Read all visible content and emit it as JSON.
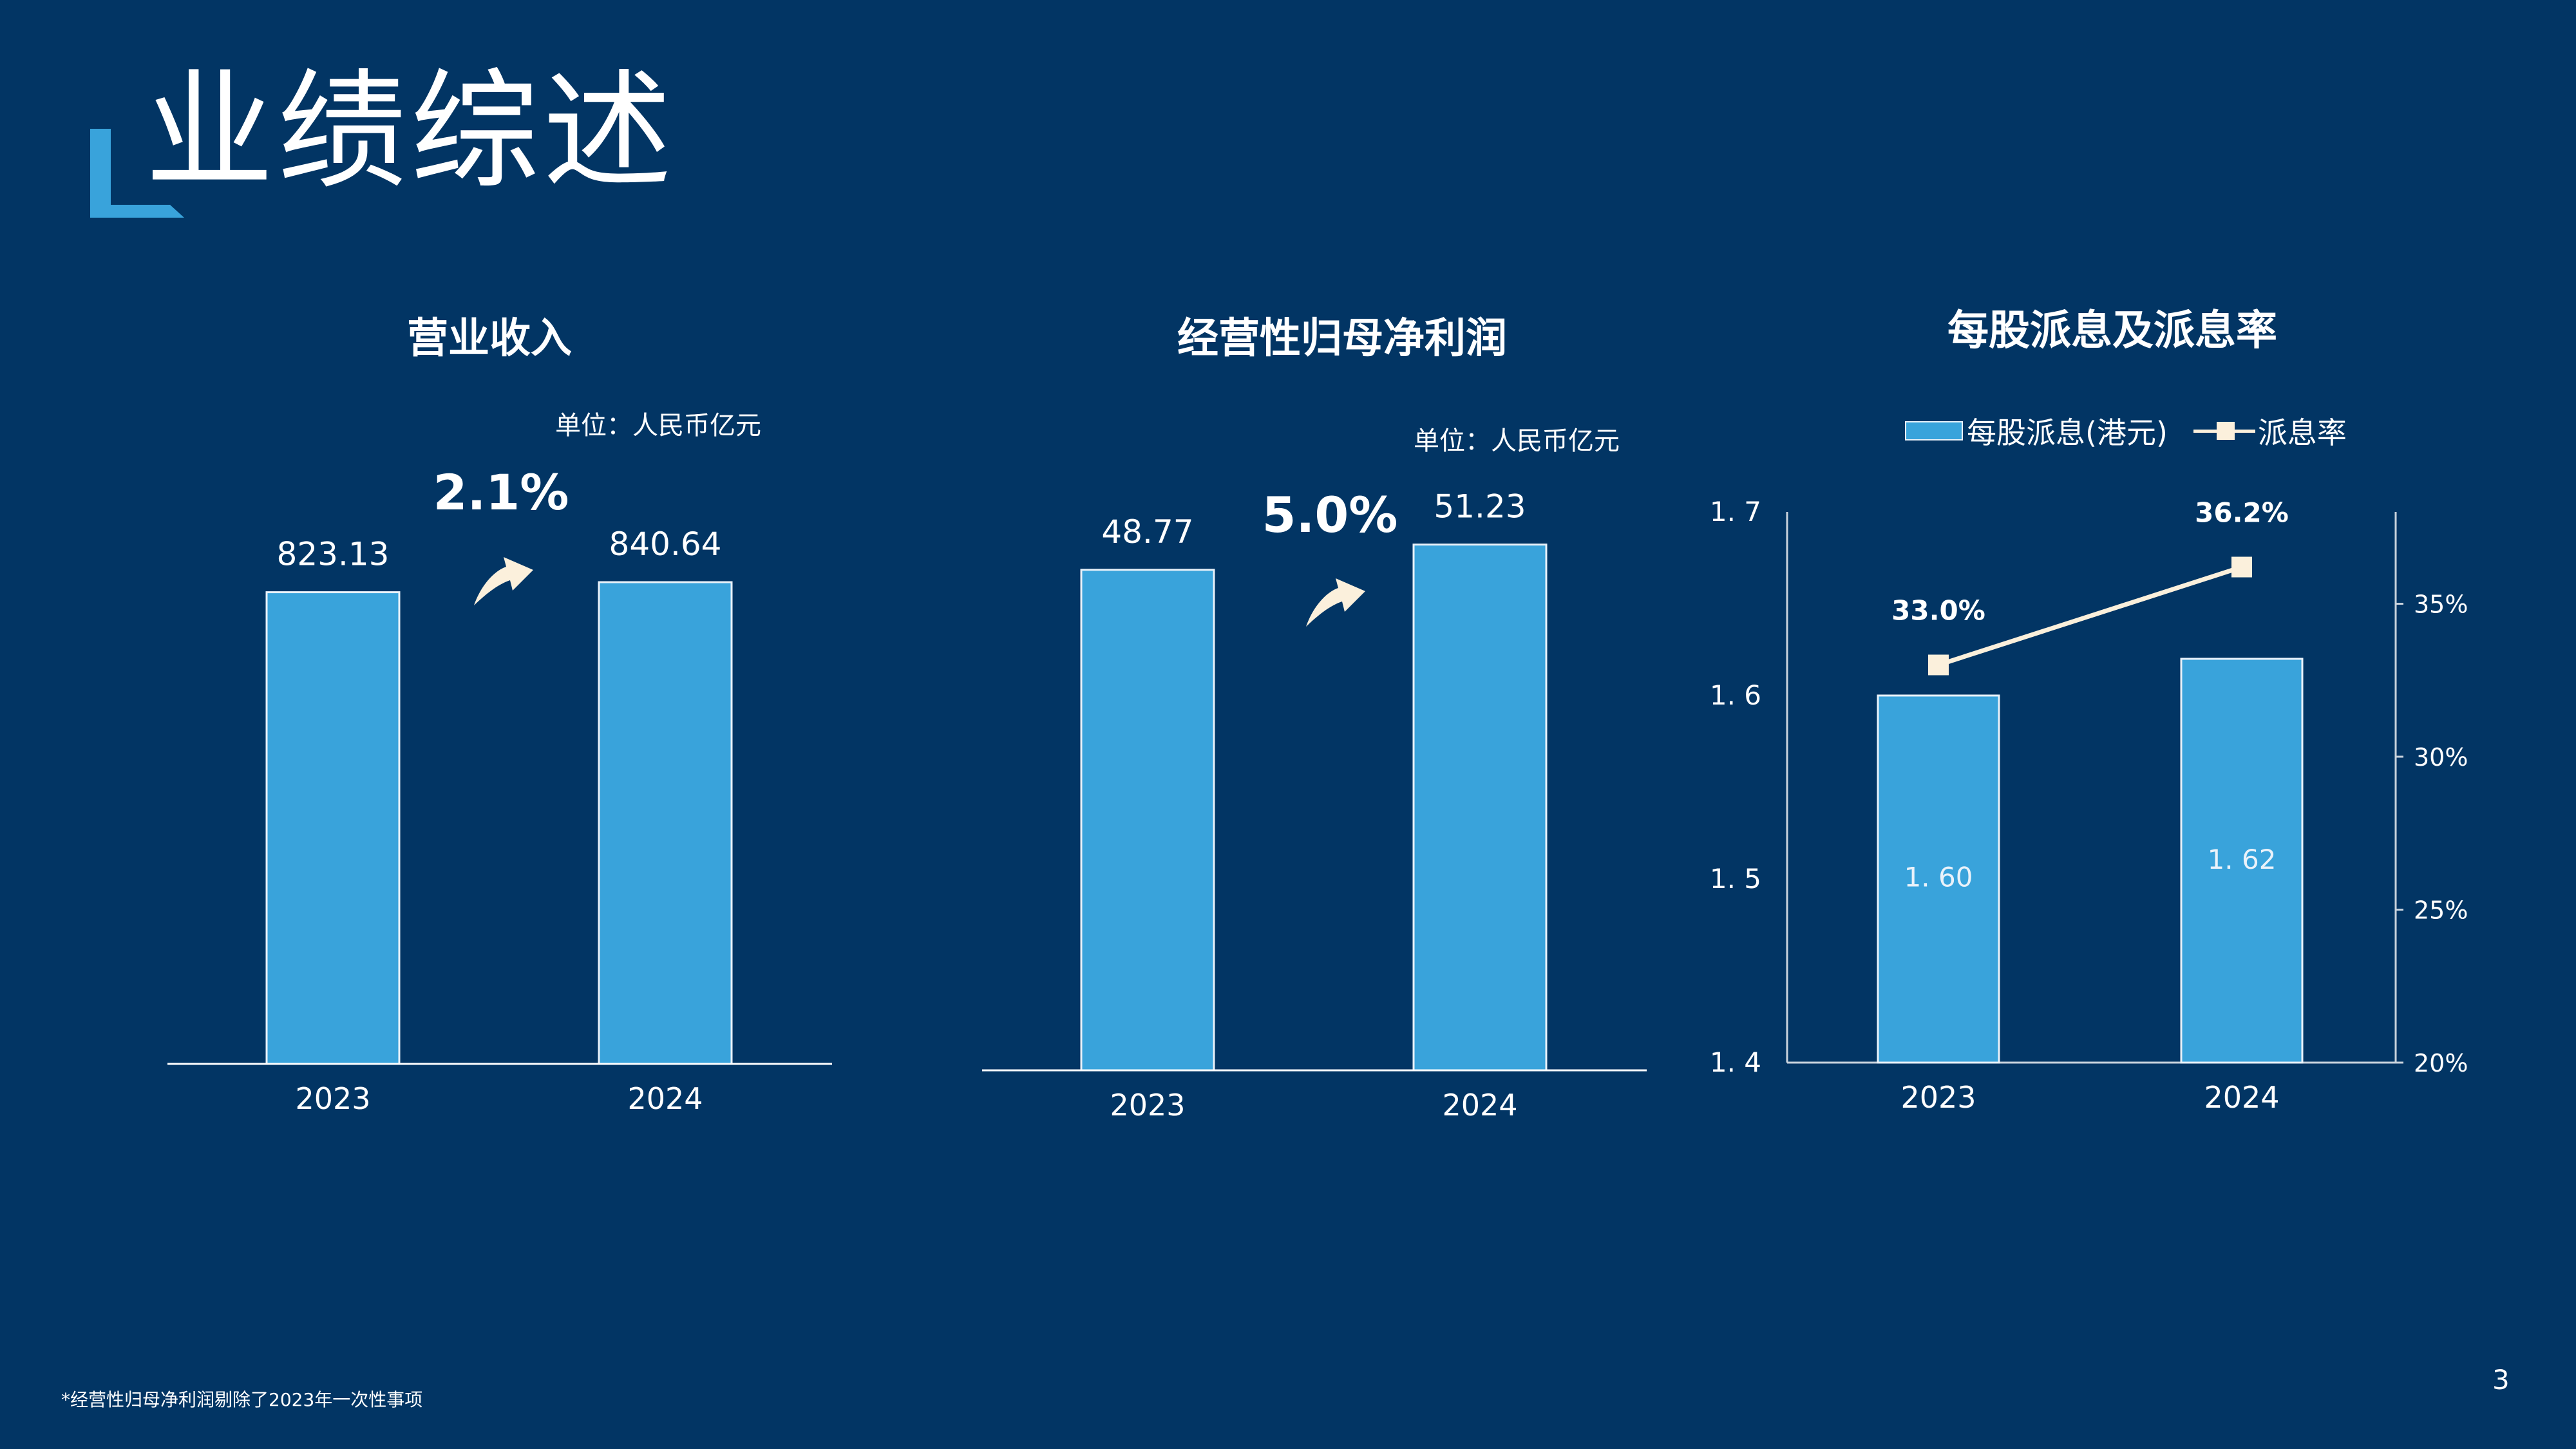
{
  "slide": {
    "title": "业绩综述",
    "page_number": "3",
    "footnote": "*经营性归母净利润剔除了2023年一次性事项"
  },
  "colors": {
    "background": "#023564",
    "bar": "#39a3db",
    "bar_outline": "#eaf2fa",
    "line": "#fbf0dc",
    "accent": "#39a3db"
  },
  "icons": {
    "corner_mark": "corner-bracket-icon",
    "growth_arrow": "curved-up-arrow-icon"
  },
  "chart_data": [
    {
      "type": "bar",
      "title": "营业收入",
      "unit": "单位：人民币亿元",
      "categories": [
        "2023",
        "2024"
      ],
      "values": [
        823.13,
        840.64
      ],
      "value_labels": [
        "823.13",
        "840.64"
      ],
      "growth": "2.1%",
      "ylim": [
        0,
        980
      ],
      "axes_visible": false
    },
    {
      "type": "bar",
      "title": "经营性归母净利润",
      "unit": "单位：人民币亿元",
      "categories": [
        "2023",
        "2024"
      ],
      "values": [
        48.77,
        51.23
      ],
      "value_labels": [
        "48.77",
        "51.23"
      ],
      "growth": "5.0%",
      "ylim": [
        0,
        56.6
      ],
      "axes_visible": false
    },
    {
      "type": "bar+line",
      "title": "每股派息及派息率",
      "categories": [
        "2023",
        "2024"
      ],
      "series": [
        {
          "name": "每股派息(港元)",
          "type": "bar",
          "axis": "left",
          "values": [
            1.6,
            1.62
          ],
          "value_labels": [
            "1. 60",
            "1. 62"
          ]
        },
        {
          "name": "派息率",
          "type": "line",
          "axis": "right",
          "values": [
            33.0,
            36.2
          ],
          "value_labels": [
            "33.0%",
            "36.2%"
          ]
        }
      ],
      "y_left": {
        "ylim": [
          1.4,
          1.7
        ],
        "ticks": [
          "1. 4",
          "1. 5",
          "1. 6",
          "1. 7"
        ],
        "tick_values": [
          1.4,
          1.5,
          1.6,
          1.7
        ]
      },
      "y_right": {
        "ylim": [
          20,
          38
        ],
        "ticks": [
          "20%",
          "25%",
          "30%",
          "35%"
        ],
        "tick_values": [
          20,
          25,
          30,
          35
        ]
      },
      "legend": "top"
    }
  ]
}
